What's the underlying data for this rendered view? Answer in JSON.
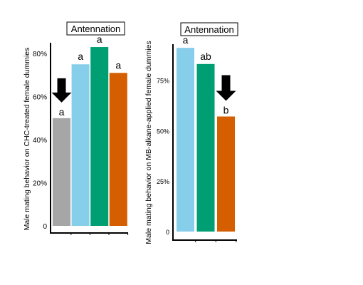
{
  "chart_data": [
    {
      "type": "bar",
      "title": "Antennation",
      "ylabel": "Male mating behavior on CHC-treated female dummies",
      "yticks": [
        {
          "value": 0,
          "label": "0"
        },
        {
          "value": 20,
          "label": "20%"
        },
        {
          "value": 40,
          "label": "40%"
        },
        {
          "value": 60,
          "label": "60%"
        },
        {
          "value": 80,
          "label": "80%"
        }
      ],
      "ylim": [
        0,
        85
      ],
      "bars": [
        {
          "value": 50,
          "color": "#a6a6a6",
          "sig": "a",
          "arrow": true
        },
        {
          "value": 75,
          "color": "#87ceeb",
          "sig": "a",
          "arrow": false
        },
        {
          "value": 83,
          "color": "#009e73",
          "sig": "a",
          "arrow": false
        },
        {
          "value": 71,
          "color": "#d55e00",
          "sig": "a",
          "arrow": false
        }
      ],
      "grid": false,
      "legend": "none"
    },
    {
      "type": "bar",
      "title": "Antennation",
      "ylabel": "Male mating behavior on MB-alkane-applied female dummies",
      "yticks": [
        {
          "value": 0,
          "label": "0"
        },
        {
          "value": 25,
          "label": "25%"
        },
        {
          "value": 50,
          "label": "50%"
        },
        {
          "value": 75,
          "label": "75%"
        }
      ],
      "ylim": [
        0,
        90
      ],
      "bars": [
        {
          "value": 91,
          "color": "#87ceeb",
          "sig": "a",
          "arrow": false
        },
        {
          "value": 83,
          "color": "#009e73",
          "sig": "ab",
          "arrow": false
        },
        {
          "value": 57,
          "color": "#d55e00",
          "sig": "b",
          "arrow": true
        }
      ],
      "grid": false,
      "legend": "none"
    }
  ]
}
